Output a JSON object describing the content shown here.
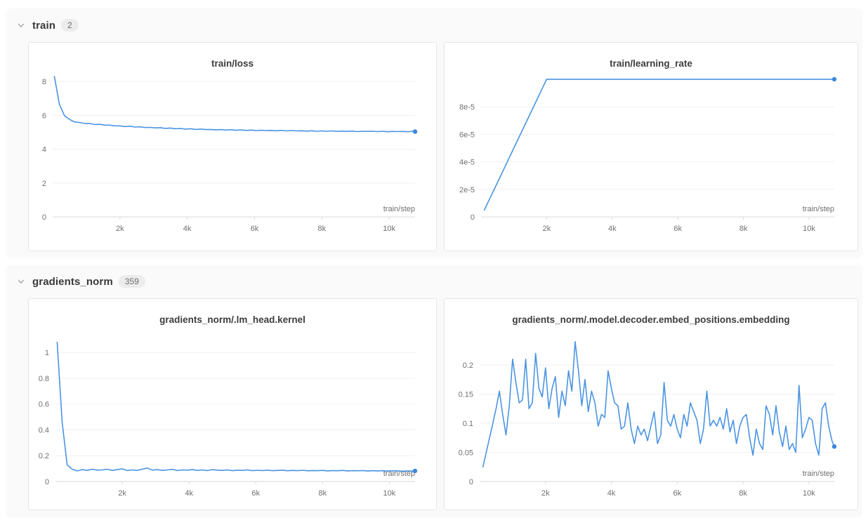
{
  "colors": {
    "line": "#4a94e2",
    "dot": "#3d87dd",
    "grid": "#efefef",
    "axis": "#d9d9d9",
    "tick_label": "#707070",
    "section_bg": "#fafafa",
    "card_border": "#e6e6e6",
    "badge_bg": "#ececec"
  },
  "sections": [
    {
      "label": "train",
      "count": "2"
    },
    {
      "label": "gradients_norm",
      "count": "359"
    }
  ],
  "chart_data": [
    {
      "type": "line",
      "title": "train/loss",
      "xlabel": "train/step",
      "legend_position": "none",
      "grid": true,
      "xlim": [
        0,
        10770
      ],
      "ylim": [
        0,
        8.42
      ],
      "x_ticks": [
        {
          "v": 2000,
          "label": "2k"
        },
        {
          "v": 4000,
          "label": "4k"
        },
        {
          "v": 6000,
          "label": "6k"
        },
        {
          "v": 8000,
          "label": "8k"
        },
        {
          "v": 10000,
          "label": "10k"
        }
      ],
      "y_ticks": [
        {
          "v": 0,
          "label": "0"
        },
        {
          "v": 2,
          "label": "2"
        },
        {
          "v": 4,
          "label": "4"
        },
        {
          "v": 6,
          "label": "6"
        },
        {
          "v": 8,
          "label": "8"
        }
      ],
      "x": [
        50,
        200,
        350,
        500,
        650,
        800,
        950,
        1100,
        1250,
        1400,
        1550,
        1700,
        1850,
        2000,
        2150,
        2300,
        2450,
        2600,
        2750,
        2900,
        3050,
        3200,
        3350,
        3500,
        3650,
        3800,
        3950,
        4100,
        4250,
        4400,
        4550,
        4700,
        4850,
        5000,
        5150,
        5300,
        5450,
        5600,
        5750,
        5900,
        6050,
        6200,
        6350,
        6500,
        6650,
        6800,
        6950,
        7100,
        7250,
        7400,
        7550,
        7700,
        7850,
        8000,
        8150,
        8300,
        8450,
        8600,
        8750,
        8900,
        9050,
        9200,
        9350,
        9500,
        9650,
        9800,
        9950,
        10100,
        10250,
        10400,
        10550,
        10700,
        10770
      ],
      "y": [
        8.3,
        6.65,
        5.98,
        5.76,
        5.61,
        5.58,
        5.52,
        5.52,
        5.46,
        5.47,
        5.42,
        5.42,
        5.38,
        5.38,
        5.34,
        5.36,
        5.31,
        5.32,
        5.28,
        5.29,
        5.26,
        5.27,
        5.23,
        5.25,
        5.21,
        5.22,
        5.19,
        5.21,
        5.17,
        5.19,
        5.16,
        5.17,
        5.14,
        5.16,
        5.13,
        5.15,
        5.12,
        5.14,
        5.11,
        5.13,
        5.1,
        5.12,
        5.1,
        5.11,
        5.09,
        5.11,
        5.08,
        5.1,
        5.08,
        5.09,
        5.07,
        5.09,
        5.06,
        5.08,
        5.06,
        5.08,
        5.05,
        5.07,
        5.05,
        5.07,
        5.04,
        5.06,
        5.05,
        5.06,
        5.04,
        5.06,
        5.03,
        5.05,
        5.04,
        5.05,
        5.03,
        5.05,
        5.04
      ]
    },
    {
      "type": "line",
      "title": "train/learning_rate",
      "xlabel": "train/step",
      "legend_position": "none",
      "grid": true,
      "xlim": [
        0,
        10770
      ],
      "ylim": [
        0,
        0.0001035
      ],
      "x_ticks": [
        {
          "v": 2000,
          "label": "2k"
        },
        {
          "v": 4000,
          "label": "4k"
        },
        {
          "v": 6000,
          "label": "6k"
        },
        {
          "v": 8000,
          "label": "8k"
        },
        {
          "v": 10000,
          "label": "10k"
        }
      ],
      "y_ticks": [
        {
          "v": 0,
          "label": "0"
        },
        {
          "v": 2e-05,
          "label": "2e-5"
        },
        {
          "v": 4e-05,
          "label": "4e-5"
        },
        {
          "v": 6e-05,
          "label": "6e-5"
        },
        {
          "v": 8e-05,
          "label": "8e-5"
        }
      ],
      "x": [
        100,
        500,
        1000,
        1500,
        2000,
        3000,
        4500,
        6000,
        7500,
        9000,
        10000,
        10770
      ],
      "y": [
        5e-06,
        2.5e-05,
        5e-05,
        7.5e-05,
        0.0001,
        0.0001,
        0.0001,
        0.0001,
        0.0001,
        0.0001,
        0.0001,
        0.0001
      ]
    },
    {
      "type": "line",
      "title": "gradients_norm/.lm_head.kernel",
      "xlabel": "train/step",
      "legend_position": "none",
      "grid": true,
      "xlim": [
        0,
        10770
      ],
      "ylim": [
        0,
        1.17
      ],
      "x_ticks": [
        {
          "v": 2000,
          "label": "2k"
        },
        {
          "v": 4000,
          "label": "4k"
        },
        {
          "v": 6000,
          "label": "6k"
        },
        {
          "v": 8000,
          "label": "8k"
        },
        {
          "v": 10000,
          "label": "10k"
        }
      ],
      "y_ticks": [
        {
          "v": 0,
          "label": "0"
        },
        {
          "v": 0.2,
          "label": "0.2"
        },
        {
          "v": 0.4,
          "label": "0.4"
        },
        {
          "v": 0.6,
          "label": "0.6"
        },
        {
          "v": 0.8,
          "label": "0.8"
        },
        {
          "v": 1,
          "label": "1"
        }
      ],
      "x": [
        50,
        200,
        350,
        500,
        650,
        800,
        950,
        1100,
        1250,
        1400,
        1550,
        1700,
        1850,
        2000,
        2150,
        2300,
        2450,
        2600,
        2750,
        2900,
        3050,
        3200,
        3350,
        3500,
        3650,
        3800,
        3950,
        4100,
        4250,
        4400,
        4550,
        4700,
        4850,
        5000,
        5150,
        5300,
        5450,
        5600,
        5750,
        5900,
        6050,
        6200,
        6350,
        6500,
        6650,
        6800,
        6950,
        7100,
        7250,
        7400,
        7550,
        7700,
        7850,
        8000,
        8150,
        8300,
        8450,
        8600,
        8750,
        8900,
        9050,
        9200,
        9350,
        9500,
        9650,
        9800,
        9950,
        10100,
        10250,
        10400,
        10550,
        10700,
        10770
      ],
      "y": [
        1.08,
        0.46,
        0.13,
        0.095,
        0.082,
        0.092,
        0.086,
        0.095,
        0.088,
        0.09,
        0.095,
        0.086,
        0.092,
        0.098,
        0.085,
        0.09,
        0.086,
        0.095,
        0.105,
        0.088,
        0.092,
        0.086,
        0.09,
        0.094,
        0.085,
        0.09,
        0.088,
        0.092,
        0.086,
        0.09,
        0.085,
        0.092,
        0.088,
        0.086,
        0.09,
        0.084,
        0.088,
        0.086,
        0.09,
        0.084,
        0.087,
        0.085,
        0.088,
        0.084,
        0.086,
        0.088,
        0.083,
        0.086,
        0.084,
        0.087,
        0.083,
        0.085,
        0.084,
        0.086,
        0.082,
        0.085,
        0.083,
        0.086,
        0.082,
        0.084,
        0.083,
        0.085,
        0.081,
        0.084,
        0.082,
        0.084,
        0.081,
        0.083,
        0.082,
        0.08,
        0.082,
        0.081,
        0.082
      ]
    },
    {
      "type": "line",
      "title": "gradients_norm/.model.decoder.embed_positions.embedding",
      "xlabel": "train/step",
      "legend_position": "none",
      "grid": true,
      "xlim": [
        0,
        10770
      ],
      "ylim": [
        0,
        0.259
      ],
      "x_ticks": [
        {
          "v": 2000,
          "label": "2k"
        },
        {
          "v": 4000,
          "label": "4k"
        },
        {
          "v": 6000,
          "label": "6k"
        },
        {
          "v": 8000,
          "label": "8k"
        },
        {
          "v": 10000,
          "label": "10k"
        }
      ],
      "y_ticks": [
        {
          "v": 0,
          "label": "0"
        },
        {
          "v": 0.05,
          "label": "0.05"
        },
        {
          "v": 0.1,
          "label": "0.1"
        },
        {
          "v": 0.15,
          "label": "0.15"
        },
        {
          "v": 0.2,
          "label": "0.2"
        }
      ],
      "x": [
        100,
        200,
        300,
        400,
        500,
        600,
        700,
        800,
        900,
        1000,
        1100,
        1200,
        1300,
        1400,
        1500,
        1600,
        1700,
        1800,
        1900,
        2000,
        2100,
        2200,
        2300,
        2400,
        2500,
        2600,
        2700,
        2800,
        2900,
        3000,
        3100,
        3200,
        3300,
        3400,
        3500,
        3600,
        3700,
        3800,
        3900,
        4000,
        4100,
        4200,
        4300,
        4400,
        4500,
        4600,
        4700,
        4800,
        4900,
        5000,
        5100,
        5200,
        5300,
        5400,
        5500,
        5600,
        5700,
        5800,
        5900,
        6000,
        6100,
        6200,
        6300,
        6400,
        6500,
        6600,
        6700,
        6800,
        6900,
        7000,
        7100,
        7200,
        7300,
        7400,
        7500,
        7600,
        7700,
        7800,
        7900,
        8000,
        8100,
        8200,
        8300,
        8400,
        8500,
        8600,
        8700,
        8800,
        8900,
        9000,
        9100,
        9200,
        9300,
        9400,
        9500,
        9600,
        9700,
        9800,
        9900,
        10000,
        10100,
        10200,
        10300,
        10400,
        10500,
        10600,
        10700,
        10770
      ],
      "y": [
        0.025,
        0.05,
        0.075,
        0.1,
        0.125,
        0.155,
        0.115,
        0.08,
        0.13,
        0.21,
        0.17,
        0.135,
        0.14,
        0.21,
        0.125,
        0.135,
        0.22,
        0.16,
        0.145,
        0.195,
        0.125,
        0.16,
        0.18,
        0.11,
        0.155,
        0.13,
        0.19,
        0.155,
        0.24,
        0.19,
        0.13,
        0.175,
        0.12,
        0.155,
        0.135,
        0.095,
        0.115,
        0.11,
        0.19,
        0.16,
        0.135,
        0.13,
        0.09,
        0.095,
        0.135,
        0.09,
        0.065,
        0.095,
        0.08,
        0.09,
        0.07,
        0.095,
        0.12,
        0.065,
        0.08,
        0.17,
        0.105,
        0.095,
        0.115,
        0.09,
        0.075,
        0.115,
        0.095,
        0.135,
        0.12,
        0.105,
        0.065,
        0.09,
        0.155,
        0.095,
        0.105,
        0.095,
        0.11,
        0.09,
        0.125,
        0.085,
        0.105,
        0.065,
        0.095,
        0.11,
        0.115,
        0.075,
        0.045,
        0.09,
        0.065,
        0.055,
        0.13,
        0.115,
        0.08,
        0.13,
        0.085,
        0.06,
        0.095,
        0.055,
        0.065,
        0.05,
        0.165,
        0.075,
        0.09,
        0.11,
        0.105,
        0.065,
        0.045,
        0.125,
        0.135,
        0.095,
        0.07,
        0.06
      ]
    }
  ]
}
